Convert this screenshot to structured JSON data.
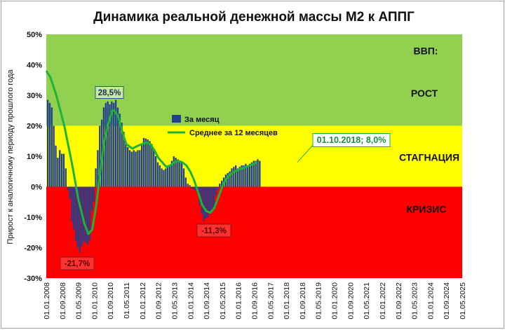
{
  "chart_data": {
    "type": "bar",
    "title": "Динамика реальной денежной массы М2 к АППГ",
    "ylabel": "Прирост к аналогичному периоду прошлого года",
    "ylim": [
      -30,
      50
    ],
    "yticks": [
      "-30%",
      "-20%",
      "-10%",
      "0%",
      "10%",
      "20%",
      "30%",
      "40%",
      "50%"
    ],
    "xlim": [
      "01.01.2008",
      "01.05.2025"
    ],
    "xticks": [
      "01.01.2008",
      "01.09.2008",
      "01.05.2009",
      "01.01.2010",
      "01.09.2010",
      "01.05.2011",
      "01.01.2012",
      "01.09.2012",
      "01.05.2013",
      "01.01.2014",
      "01.09.2014",
      "01.05.2015",
      "01.01.2016",
      "01.09.2016",
      "01.05.2017",
      "01.01.2018",
      "01.09.2018",
      "01.05.2019",
      "01.01.2020",
      "01.09.2020",
      "01.05.2021",
      "01.01.2022",
      "01.09.2022",
      "01.05.2023",
      "01.01.2024",
      "01.09.2024",
      "01.05.2025"
    ],
    "zones": [
      {
        "label": "ВВП:",
        "from": 20,
        "to": 50,
        "color": "#92d050"
      },
      {
        "label": "РОСТ",
        "from": 20,
        "to": 50,
        "color": "#92d050"
      },
      {
        "label": "СТАГНАЦИЯ",
        "from": 0,
        "to": 20,
        "color": "#ffff00"
      },
      {
        "label": "КРИЗИС",
        "from": -30,
        "to": 0,
        "color": "#ff0000"
      }
    ],
    "series": [
      {
        "name": "За месяц",
        "kind": "bar",
        "color": "#1f3f8f",
        "start": "01.01.2008",
        "values": [
          28.5,
          27.5,
          26,
          20,
          13.5,
          9.5,
          12,
          10.8,
          10.8,
          6,
          -1,
          -4,
          -11.5,
          -14,
          -18,
          -20,
          -21.7,
          -19.5,
          -18,
          -18.5,
          -19,
          -17.5,
          -8,
          -5,
          6,
          12,
          20,
          22,
          26,
          27.5,
          28,
          27,
          28,
          27.5,
          28.5,
          26,
          24,
          21,
          18,
          15,
          13,
          12,
          11.5,
          12,
          11.5,
          12,
          12,
          14,
          16,
          15.8,
          15.5,
          15,
          14,
          12,
          10,
          8,
          7,
          6,
          5.5,
          6,
          6.5,
          7,
          8.5,
          10,
          9.5,
          9,
          8.5,
          8,
          6,
          3,
          1,
          0.5,
          -0.5,
          -1,
          -1,
          -2,
          -6,
          -9,
          -11.3,
          -10.5,
          -10,
          -9,
          -8,
          -7,
          -3,
          -1,
          1,
          2,
          3,
          4,
          4.5,
          5,
          6,
          6.5,
          7,
          6,
          6.5,
          7,
          7,
          7.5,
          7,
          7.5,
          8,
          8.5,
          8.5,
          9,
          8.5
        ]
      },
      {
        "name": "Среднее за 12 месяцев",
        "kind": "line",
        "color": "#1db33a",
        "points": [
          [
            0,
            38
          ],
          [
            2,
            36
          ],
          [
            5,
            30
          ],
          [
            9,
            20
          ],
          [
            13,
            7
          ],
          [
            16,
            -4
          ],
          [
            19,
            -12
          ],
          [
            21,
            -15.5
          ],
          [
            23,
            -14
          ],
          [
            25,
            -6
          ],
          [
            27,
            5
          ],
          [
            29,
            15
          ],
          [
            31,
            20.5
          ],
          [
            33,
            25
          ],
          [
            34,
            25
          ],
          [
            36,
            23
          ],
          [
            38,
            18
          ],
          [
            40,
            14
          ],
          [
            43,
            12.5
          ],
          [
            46,
            13.5
          ],
          [
            48,
            14
          ],
          [
            50,
            14.5
          ],
          [
            52,
            14
          ],
          [
            54,
            12
          ],
          [
            56,
            9.5
          ],
          [
            58,
            8
          ],
          [
            60,
            6.5
          ],
          [
            62,
            7
          ],
          [
            64,
            8
          ],
          [
            66,
            8.5
          ],
          [
            68,
            8
          ],
          [
            70,
            7
          ],
          [
            72,
            5
          ],
          [
            74,
            2
          ],
          [
            76,
            -2
          ],
          [
            78,
            -6
          ],
          [
            80,
            -8
          ],
          [
            82,
            -8.5
          ],
          [
            84,
            -7
          ],
          [
            86,
            -3.5
          ],
          [
            88,
            0
          ],
          [
            90,
            2.5
          ],
          [
            92,
            4
          ],
          [
            94,
            5
          ],
          [
            96,
            5.5
          ],
          [
            98,
            6
          ],
          [
            100,
            6.5
          ],
          [
            102,
            7
          ],
          [
            104,
            7.5
          ],
          [
            105,
            8
          ]
        ]
      }
    ],
    "annotations": [
      {
        "text": "28,5%",
        "series": "За месяц"
      },
      {
        "text": "-21,7%",
        "series": "За месяц"
      },
      {
        "text": "-11,3%",
        "series": "За месяц"
      },
      {
        "text": "01.10.2018; 8,0%",
        "series": "Среднее за 12 месяцев"
      }
    ],
    "legend": "center"
  }
}
